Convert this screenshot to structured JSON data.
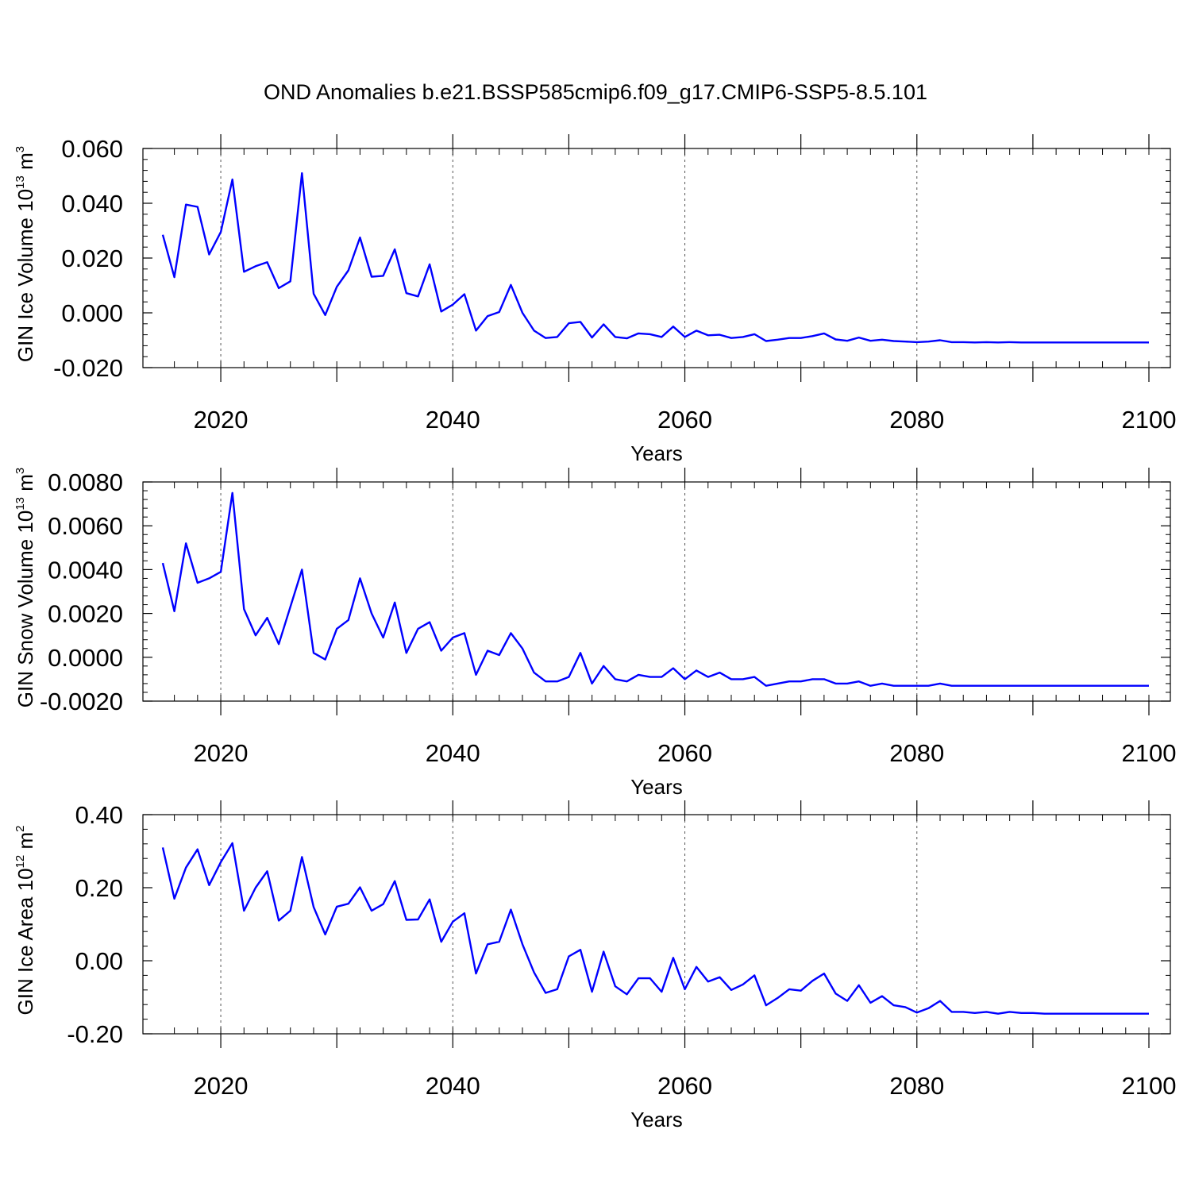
{
  "chart_data": [
    {
      "type": "line",
      "title": "OND Anomalies b.e21.BSSP585cmip6.f09_g17.CMIP6-SSP5-8.5.101",
      "ylabel": "GIN Ice Volume 10",
      "ylabel_exp": "13",
      "ylabel_unit": " m",
      "ylabel_unit_exp": "3",
      "xlabel": "Years",
      "xlim": [
        2015,
        2100
      ],
      "ylim": [
        -0.02,
        0.06
      ],
      "yticks": [
        -0.02,
        0.0,
        0.02,
        0.04,
        0.06
      ],
      "ytick_labels": [
        "-0.020",
        "0.000",
        "0.020",
        "0.040",
        "0.060"
      ],
      "xticks": [
        2020,
        2040,
        2060,
        2080,
        2100
      ],
      "xtick_labels": [
        "2020",
        "2040",
        "2060",
        "2080",
        "2100"
      ],
      "grid_x": [
        2020,
        2040,
        2060,
        2080
      ],
      "line_color": "#0000ff",
      "x_start": 2015,
      "values": [
        0.0285,
        0.013,
        0.0395,
        0.0387,
        0.0213,
        0.0295,
        0.0487,
        0.015,
        0.017,
        0.0185,
        0.009,
        0.0115,
        0.051,
        0.007,
        -0.0008,
        0.0095,
        0.0155,
        0.0275,
        0.0132,
        0.0135,
        0.0232,
        0.0072,
        0.006,
        0.0177,
        0.0005,
        0.003,
        0.0068,
        -0.0065,
        -0.0012,
        0.0003,
        0.0102,
        0.0,
        -0.0065,
        -0.0092,
        -0.0088,
        -0.0038,
        -0.0033,
        -0.009,
        -0.0042,
        -0.0088,
        -0.0093,
        -0.0075,
        -0.0078,
        -0.0088,
        -0.005,
        -0.0088,
        -0.0065,
        -0.0082,
        -0.008,
        -0.0092,
        -0.0088,
        -0.0078,
        -0.0103,
        -0.0098,
        -0.0092,
        -0.0092,
        -0.0085,
        -0.0075,
        -0.0097,
        -0.0102,
        -0.009,
        -0.0102,
        -0.0098,
        -0.0103,
        -0.0105,
        -0.0107,
        -0.0105,
        -0.01,
        -0.0107,
        -0.0107,
        -0.0108,
        -0.0107,
        -0.0108,
        -0.0107,
        -0.0108,
        -0.0108,
        -0.0108,
        -0.0108,
        -0.0108,
        -0.0108,
        -0.0108,
        -0.0108,
        -0.0108,
        -0.0108,
        -0.0108,
        -0.0108
      ]
    },
    {
      "type": "line",
      "ylabel": "GIN Snow Volume 10",
      "ylabel_exp": "13",
      "ylabel_unit": " m",
      "ylabel_unit_exp": "3",
      "xlabel": "Years",
      "xlim": [
        2015,
        2100
      ],
      "ylim": [
        -0.002,
        0.008
      ],
      "yticks": [
        -0.002,
        0.0,
        0.002,
        0.004,
        0.006,
        0.008
      ],
      "ytick_labels": [
        "-0.0020",
        "0.0000",
        "0.0020",
        "0.0040",
        "0.0060",
        "0.0080"
      ],
      "xticks": [
        2020,
        2040,
        2060,
        2080,
        2100
      ],
      "xtick_labels": [
        "2020",
        "2040",
        "2060",
        "2080",
        "2100"
      ],
      "grid_x": [
        2020,
        2040,
        2060,
        2080
      ],
      "line_color": "#0000ff",
      "x_start": 2015,
      "values": [
        0.0043,
        0.0021,
        0.0052,
        0.0034,
        0.0036,
        0.0039,
        0.0075,
        0.0022,
        0.001,
        0.0018,
        0.0006,
        0.0023,
        0.004,
        0.0002,
        -0.0001,
        0.0013,
        0.0017,
        0.0036,
        0.002,
        0.0009,
        0.0025,
        0.0002,
        0.0013,
        0.0016,
        0.0003,
        0.0009,
        0.0011,
        -0.0008,
        0.0003,
        0.0001,
        0.0011,
        0.0004,
        -0.0007,
        -0.0011,
        -0.0011,
        -0.0009,
        0.0002,
        -0.0012,
        -0.0004,
        -0.001,
        -0.0011,
        -0.0008,
        -0.0009,
        -0.0009,
        -0.0005,
        -0.001,
        -0.0006,
        -0.0009,
        -0.0007,
        -0.001,
        -0.001,
        -0.0009,
        -0.0013,
        -0.0012,
        -0.0011,
        -0.0011,
        -0.001,
        -0.001,
        -0.0012,
        -0.0012,
        -0.0011,
        -0.0013,
        -0.0012,
        -0.0013,
        -0.0013,
        -0.0013,
        -0.0013,
        -0.0012,
        -0.0013,
        -0.0013,
        -0.0013,
        -0.0013,
        -0.0013,
        -0.0013,
        -0.0013,
        -0.0013,
        -0.0013,
        -0.0013,
        -0.0013,
        -0.0013,
        -0.0013,
        -0.0013,
        -0.0013,
        -0.0013,
        -0.0013,
        -0.0013
      ]
    },
    {
      "type": "line",
      "ylabel": "GIN Ice Area 10",
      "ylabel_exp": "12",
      "ylabel_unit": " m",
      "ylabel_unit_exp": "2",
      "xlabel": "Years",
      "xlim": [
        2015,
        2100
      ],
      "ylim": [
        -0.2,
        0.4
      ],
      "yticks": [
        -0.2,
        0.0,
        0.2,
        0.4
      ],
      "ytick_labels": [
        "-0.20",
        "0.00",
        "0.20",
        "0.40"
      ],
      "xticks": [
        2020,
        2040,
        2060,
        2080,
        2100
      ],
      "xtick_labels": [
        "2020",
        "2040",
        "2060",
        "2080",
        "2100"
      ],
      "grid_x": [
        2020,
        2040,
        2060,
        2080
      ],
      "line_color": "#0000ff",
      "x_start": 2015,
      "values": [
        0.31,
        0.17,
        0.255,
        0.305,
        0.207,
        0.27,
        0.322,
        0.137,
        0.2,
        0.245,
        0.11,
        0.137,
        0.284,
        0.147,
        0.072,
        0.148,
        0.156,
        0.201,
        0.137,
        0.155,
        0.218,
        0.112,
        0.113,
        0.168,
        0.052,
        0.107,
        0.13,
        -0.035,
        0.045,
        0.052,
        0.14,
        0.045,
        -0.032,
        -0.088,
        -0.078,
        0.012,
        0.03,
        -0.085,
        0.025,
        -0.07,
        -0.092,
        -0.048,
        -0.048,
        -0.085,
        0.008,
        -0.078,
        -0.017,
        -0.057,
        -0.045,
        -0.08,
        -0.065,
        -0.04,
        -0.122,
        -0.102,
        -0.078,
        -0.082,
        -0.055,
        -0.035,
        -0.09,
        -0.11,
        -0.067,
        -0.115,
        -0.097,
        -0.122,
        -0.127,
        -0.142,
        -0.13,
        -0.11,
        -0.14,
        -0.14,
        -0.143,
        -0.14,
        -0.145,
        -0.14,
        -0.143,
        -0.143,
        -0.145,
        -0.145,
        -0.145,
        -0.145,
        -0.145,
        -0.145,
        -0.145,
        -0.145,
        -0.145,
        -0.145
      ]
    }
  ]
}
